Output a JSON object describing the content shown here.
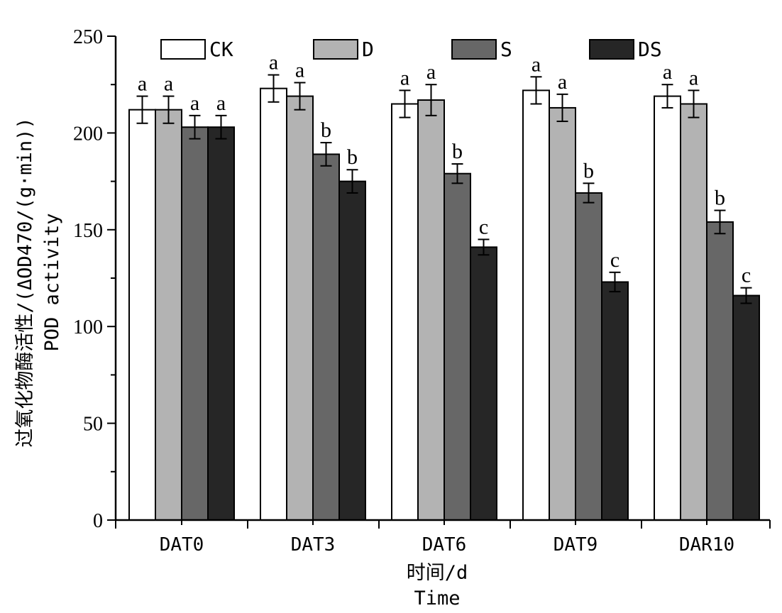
{
  "chart_data": {
    "type": "bar",
    "categories": [
      "DAT0",
      "DAT3",
      "DAT6",
      "DAT9",
      "DAR10"
    ],
    "series": [
      {
        "name": "CK",
        "color": "#ffffff",
        "values": [
          212,
          223,
          215,
          222,
          219
        ],
        "errors": [
          7,
          7,
          7,
          7,
          6
        ],
        "labels": [
          "a",
          "a",
          "a",
          "a",
          "a"
        ]
      },
      {
        "name": "D",
        "color": "#b3b3b3",
        "values": [
          212,
          219,
          217,
          213,
          215
        ],
        "errors": [
          7,
          7,
          8,
          7,
          7
        ],
        "labels": [
          "a",
          "a",
          "a",
          "a",
          "a"
        ]
      },
      {
        "name": "S",
        "color": "#676767",
        "values": [
          203,
          189,
          179,
          169,
          154
        ],
        "errors": [
          6,
          6,
          5,
          5,
          6
        ],
        "labels": [
          "a",
          "b",
          "b",
          "b",
          "b"
        ]
      },
      {
        "name": "DS",
        "color": "#262626",
        "values": [
          203,
          175,
          141,
          123,
          116
        ],
        "errors": [
          6,
          6,
          4,
          5,
          4
        ],
        "labels": [
          "a",
          "b",
          "c",
          "c",
          "c"
        ]
      }
    ],
    "ylim": [
      0,
      250
    ],
    "yticks": [
      0,
      50,
      100,
      150,
      200,
      250
    ],
    "ylabel_cn": "过氧化物酶活性/(ΔOD470/(g·min))",
    "ylabel_en": "POD activity",
    "xlabel_cn": "时间/d",
    "xlabel_en": "Time",
    "legend_position": "top",
    "grid": false
  }
}
